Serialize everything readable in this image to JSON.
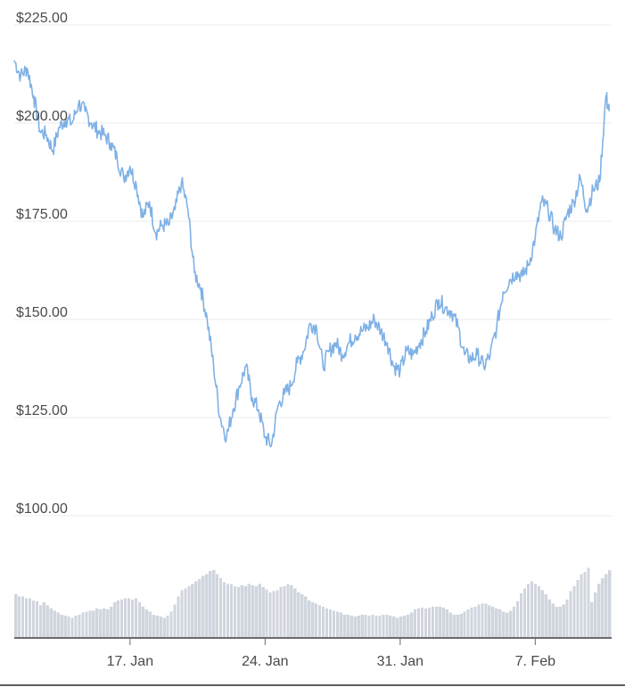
{
  "colors": {
    "price_line": "#7fb1e6",
    "volume_bar": "#d0d5de",
    "grid": "#e8ebef",
    "axis": "#3a3a3a",
    "text": "#4a4a4a"
  },
  "chart_data": {
    "type": "line",
    "title": "",
    "xlabel": "",
    "ylabel": "",
    "ylim": [
      100,
      225
    ],
    "y_ticks": [
      {
        "value": 225,
        "label": "$225.00"
      },
      {
        "value": 200,
        "label": "$200.00"
      },
      {
        "value": 175,
        "label": "$175.00"
      },
      {
        "value": 150,
        "label": "$150.00"
      },
      {
        "value": 125,
        "label": "$125.00"
      },
      {
        "value": 100,
        "label": "$100.00"
      }
    ],
    "x_range": [
      "2022-01-11",
      "2022-02-10"
    ],
    "x_ticks": [
      {
        "date": "2022-01-17",
        "label": "17. Jan"
      },
      {
        "date": "2022-01-24",
        "label": "24. Jan"
      },
      {
        "date": "2022-01-31",
        "label": "31. Jan"
      },
      {
        "date": "2022-02-07",
        "label": "7. Feb"
      }
    ],
    "grid": true,
    "series": [
      {
        "values": [
          [
            "2022-01-11 00:00",
            216
          ],
          [
            "2022-01-11 08:00",
            212
          ],
          [
            "2022-01-11 16:00",
            214
          ],
          [
            "2022-01-12 00:00",
            207
          ],
          [
            "2022-01-12 08:00",
            198
          ],
          [
            "2022-01-12 16:00",
            197
          ],
          [
            "2022-01-13 00:00",
            193
          ],
          [
            "2022-01-13 08:00",
            199
          ],
          [
            "2022-01-13 16:00",
            201
          ],
          [
            "2022-01-14 00:00",
            200
          ],
          [
            "2022-01-14 08:00",
            205
          ],
          [
            "2022-01-14 16:00",
            203
          ],
          [
            "2022-01-15 00:00",
            200
          ],
          [
            "2022-01-15 08:00",
            198
          ],
          [
            "2022-01-15 16:00",
            197
          ],
          [
            "2022-01-16 00:00",
            195
          ],
          [
            "2022-01-16 08:00",
            191
          ],
          [
            "2022-01-16 16:00",
            186
          ],
          [
            "2022-01-17 00:00",
            189
          ],
          [
            "2022-01-17 08:00",
            184
          ],
          [
            "2022-01-17 16:00",
            176
          ],
          [
            "2022-01-18 00:00",
            180
          ],
          [
            "2022-01-18 08:00",
            172
          ],
          [
            "2022-01-18 16:00",
            174
          ],
          [
            "2022-01-19 00:00",
            174
          ],
          [
            "2022-01-19 08:00",
            178
          ],
          [
            "2022-01-19 16:00",
            185
          ],
          [
            "2022-01-20 00:00",
            178
          ],
          [
            "2022-01-20 08:00",
            162
          ],
          [
            "2022-01-20 16:00",
            158
          ],
          [
            "2022-01-21 00:00",
            150
          ],
          [
            "2022-01-21 08:00",
            138
          ],
          [
            "2022-01-21 16:00",
            125
          ],
          [
            "2022-01-22 00:00",
            120
          ],
          [
            "2022-01-22 08:00",
            127
          ],
          [
            "2022-01-22 16:00",
            133
          ],
          [
            "2022-01-23 00:00",
            138
          ],
          [
            "2022-01-23 08:00",
            130
          ],
          [
            "2022-01-23 16:00",
            127
          ],
          [
            "2022-01-24 00:00",
            120
          ],
          [
            "2022-01-24 08:00",
            118
          ],
          [
            "2022-01-24 16:00",
            128
          ],
          [
            "2022-01-25 00:00",
            131
          ],
          [
            "2022-01-25 08:00",
            133
          ],
          [
            "2022-01-25 16:00",
            139
          ],
          [
            "2022-01-26 00:00",
            142
          ],
          [
            "2022-01-26 08:00",
            149
          ],
          [
            "2022-01-26 16:00",
            148
          ],
          [
            "2022-01-27 00:00",
            138
          ],
          [
            "2022-01-27 08:00",
            142
          ],
          [
            "2022-01-27 16:00",
            144
          ],
          [
            "2022-01-28 00:00",
            141
          ],
          [
            "2022-01-28 08:00",
            144
          ],
          [
            "2022-01-28 16:00",
            146
          ],
          [
            "2022-01-29 00:00",
            147
          ],
          [
            "2022-01-29 08:00",
            148
          ],
          [
            "2022-01-29 16:00",
            150
          ],
          [
            "2022-01-30 00:00",
            147
          ],
          [
            "2022-01-30 08:00",
            144
          ],
          [
            "2022-01-30 16:00",
            138
          ],
          [
            "2022-01-31 00:00",
            137
          ],
          [
            "2022-01-31 08:00",
            142
          ],
          [
            "2022-01-31 16:00",
            141
          ],
          [
            "2022-02-01 00:00",
            144
          ],
          [
            "2022-02-01 08:00",
            147
          ],
          [
            "2022-02-01 16:00",
            151
          ],
          [
            "2022-02-02 00:00",
            155
          ],
          [
            "2022-02-02 08:00",
            153
          ],
          [
            "2022-02-02 16:00",
            152
          ],
          [
            "2022-02-03 00:00",
            148
          ],
          [
            "2022-02-03 08:00",
            141
          ],
          [
            "2022-02-03 16:00",
            140
          ],
          [
            "2022-02-04 00:00",
            141
          ],
          [
            "2022-02-04 08:00",
            138
          ],
          [
            "2022-02-04 16:00",
            141
          ],
          [
            "2022-02-05 00:00",
            148
          ],
          [
            "2022-02-05 08:00",
            157
          ],
          [
            "2022-02-05 16:00",
            160
          ],
          [
            "2022-02-06 00:00",
            162
          ],
          [
            "2022-02-06 08:00",
            161
          ],
          [
            "2022-02-06 16:00",
            164
          ],
          [
            "2022-02-07 00:00",
            171
          ],
          [
            "2022-02-07 08:00",
            180
          ],
          [
            "2022-02-07 16:00",
            178
          ],
          [
            "2022-02-08 00:00",
            173
          ],
          [
            "2022-02-08 08:00",
            171
          ],
          [
            "2022-02-08 16:00",
            177
          ],
          [
            "2022-02-09 00:00",
            180
          ],
          [
            "2022-02-09 08:00",
            186
          ],
          [
            "2022-02-09 16:00",
            178
          ],
          [
            "2022-02-10 00:00",
            183
          ],
          [
            "2022-02-10 08:00",
            185
          ],
          [
            "2022-02-10 16:00",
            207
          ],
          [
            "2022-02-10 20:00",
            203
          ]
        ]
      }
    ],
    "volume": {
      "type": "bar",
      "ylim": [
        0,
        100
      ],
      "values": [
        [
          42,
          40,
          40,
          38,
          38,
          36,
          35,
          31,
          34,
          31,
          28,
          26,
          24,
          22,
          21,
          20,
          19,
          21,
          22,
          24,
          25,
          26,
          26,
          28,
          27,
          28,
          27,
          30,
          34,
          36,
          37,
          38,
          38,
          37,
          38,
          34,
          30,
          27,
          25,
          22,
          21,
          20,
          19,
          21,
          25,
          32,
          40,
          46,
          48,
          50,
          52,
          55,
          57,
          60,
          62,
          65,
          66,
          62,
          58,
          54,
          52,
          52,
          50,
          49,
          51,
          50,
          52,
          51,
          50,
          52,
          49,
          47,
          44,
          45,
          46,
          49,
          50,
          52,
          51,
          48,
          44,
          42,
          40,
          36,
          34,
          33,
          31,
          30,
          28,
          27,
          26,
          25,
          24,
          22,
          22,
          21,
          20,
          21,
          22,
          22,
          21,
          22,
          21,
          21,
          22,
          22,
          21,
          20,
          19,
          20,
          21,
          22,
          24,
          27,
          28,
          29,
          28,
          29,
          30,
          30,
          30,
          29,
          27,
          24,
          22,
          22,
          23,
          25,
          27,
          29,
          30,
          32,
          33,
          33,
          31,
          30,
          28,
          27,
          25,
          24,
          26,
          30,
          35,
          43,
          48,
          52,
          55,
          52,
          50,
          46,
          42,
          37,
          33,
          30,
          30,
          32,
          37,
          45,
          50,
          56,
          62,
          64,
          68
        ],
        [
          34,
          44,
          52,
          58,
          62,
          66
        ]
      ]
    }
  }
}
